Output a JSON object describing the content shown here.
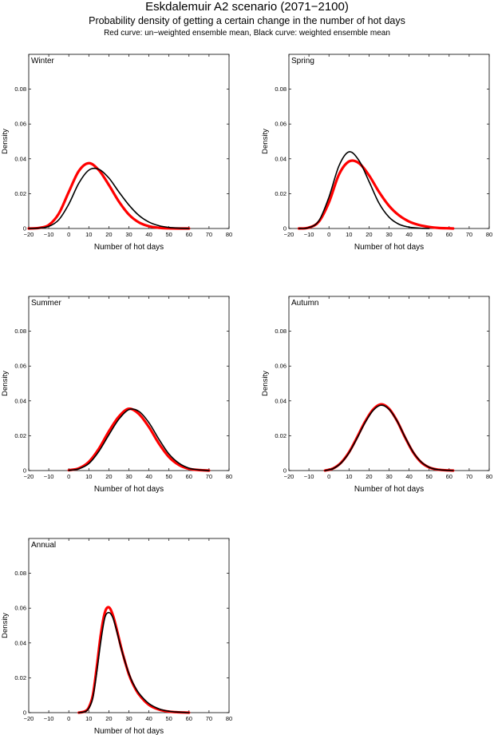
{
  "header": {
    "title": "Eskdalemuir A2 scenario (2071−2100)",
    "subtitle": "Probability density of getting a certain change in the number of hot days",
    "legend_note": "Red curve: un−weighted ensemble mean, Black curve: weighted ensemble mean"
  },
  "colors": {
    "unweighted": "#ff0000",
    "weighted": "#000000"
  },
  "chart_data": [
    {
      "type": "line",
      "panel": "Winter",
      "xlabel": "Number of hot days",
      "ylabel": "Density",
      "xlim": [
        -20,
        80
      ],
      "ylim": [
        0,
        0.1
      ],
      "xticks": [
        -20,
        -10,
        0,
        10,
        20,
        30,
        40,
        50,
        60,
        70,
        80
      ],
      "yticks": [
        0,
        0.02,
        0.04,
        0.06,
        0.08
      ],
      "series": [
        {
          "name": "Red curve: un-weighted ensemble mean",
          "x": [
            -20,
            -15,
            -10,
            -5,
            0,
            5,
            10,
            15,
            20,
            25,
            30,
            35,
            40,
            45,
            50,
            55,
            60
          ],
          "y": [
            0,
            0.0003,
            0.002,
            0.0085,
            0.021,
            0.033,
            0.0375,
            0.0335,
            0.025,
            0.0155,
            0.008,
            0.0035,
            0.0013,
            0.0004,
            0.0001,
            0,
            0
          ]
        },
        {
          "name": "Black curve: weighted ensemble mean",
          "x": [
            -20,
            -15,
            -10,
            -5,
            0,
            5,
            10,
            15,
            20,
            25,
            30,
            35,
            40,
            45,
            50,
            55,
            60
          ],
          "y": [
            0,
            0.0002,
            0.0012,
            0.005,
            0.014,
            0.026,
            0.0335,
            0.034,
            0.029,
            0.021,
            0.0135,
            0.0075,
            0.0037,
            0.0016,
            0.0006,
            0.0002,
            0
          ]
        }
      ]
    },
    {
      "type": "line",
      "panel": "Spring",
      "xlabel": "Number of hot days",
      "ylabel": "Density",
      "xlim": [
        -20,
        80
      ],
      "ylim": [
        0,
        0.1
      ],
      "xticks": [
        -20,
        -10,
        0,
        10,
        20,
        30,
        40,
        50,
        60,
        70,
        80
      ],
      "yticks": [
        0,
        0.02,
        0.04,
        0.06,
        0.08
      ],
      "series": [
        {
          "name": "Red curve: un-weighted ensemble mean",
          "x": [
            -15,
            -10,
            -5,
            0,
            5,
            10,
            15,
            20,
            25,
            30,
            35,
            40,
            45,
            50,
            55,
            60,
            62
          ],
          "y": [
            0,
            0.0005,
            0.004,
            0.015,
            0.031,
            0.0385,
            0.0375,
            0.0305,
            0.021,
            0.013,
            0.0075,
            0.004,
            0.002,
            0.0009,
            0.0003,
            0.0001,
            0
          ]
        },
        {
          "name": "Black curve: weighted ensemble mean",
          "x": [
            -15,
            -10,
            -5,
            0,
            5,
            10,
            15,
            20,
            25,
            30,
            35,
            40,
            45,
            50
          ],
          "y": [
            0,
            0.0005,
            0.0045,
            0.018,
            0.036,
            0.044,
            0.039,
            0.027,
            0.0145,
            0.0065,
            0.0024,
            0.0008,
            0.0002,
            0
          ]
        }
      ]
    },
    {
      "type": "line",
      "panel": "Summer",
      "xlabel": "Number of hot days",
      "ylabel": "Density",
      "xlim": [
        -20,
        80
      ],
      "ylim": [
        0,
        0.1
      ],
      "xticks": [
        -20,
        -10,
        0,
        10,
        20,
        30,
        40,
        50,
        60,
        70,
        80
      ],
      "yticks": [
        0,
        0.02,
        0.04,
        0.06,
        0.08
      ],
      "series": [
        {
          "name": "Red curve: un-weighted ensemble mean",
          "x": [
            0,
            5,
            10,
            15,
            20,
            25,
            30,
            35,
            40,
            45,
            50,
            55,
            60,
            65,
            70
          ],
          "y": [
            0.0002,
            0.0013,
            0.005,
            0.0125,
            0.0225,
            0.031,
            0.0355,
            0.0325,
            0.025,
            0.0155,
            0.0078,
            0.0032,
            0.001,
            0.0003,
            0
          ]
        },
        {
          "name": "Black curve: weighted ensemble mean",
          "x": [
            0,
            5,
            10,
            15,
            20,
            25,
            30,
            35,
            40,
            45,
            50,
            55,
            60,
            65,
            70
          ],
          "y": [
            0.0001,
            0.001,
            0.004,
            0.011,
            0.0205,
            0.0295,
            0.035,
            0.034,
            0.0275,
            0.018,
            0.0095,
            0.0042,
            0.0014,
            0.0004,
            0
          ]
        }
      ]
    },
    {
      "type": "line",
      "panel": "Autumn",
      "xlabel": "Number of hot days",
      "ylabel": "Density",
      "xlim": [
        -20,
        80
      ],
      "ylim": [
        0,
        0.1
      ],
      "xticks": [
        -20,
        -10,
        0,
        10,
        20,
        30,
        40,
        50,
        60,
        70,
        80
      ],
      "yticks": [
        0,
        0.02,
        0.04,
        0.06,
        0.08
      ],
      "series": [
        {
          "name": "Red curve: un-weighted ensemble mean",
          "x": [
            -2,
            2,
            6,
            10,
            14,
            18,
            22,
            26,
            30,
            34,
            38,
            42,
            46,
            50,
            54,
            58,
            62
          ],
          "y": [
            0,
            0.0012,
            0.0045,
            0.0105,
            0.019,
            0.028,
            0.035,
            0.038,
            0.0355,
            0.0285,
            0.019,
            0.0105,
            0.0048,
            0.0018,
            0.0006,
            0.0002,
            0
          ]
        },
        {
          "name": "Black curve: weighted ensemble mean",
          "x": [
            -2,
            2,
            6,
            10,
            14,
            18,
            22,
            26,
            30,
            34,
            38,
            42,
            46,
            50,
            54,
            58,
            62
          ],
          "y": [
            0,
            0.0011,
            0.0043,
            0.0102,
            0.0185,
            0.0275,
            0.0345,
            0.0375,
            0.0352,
            0.0285,
            0.0192,
            0.0107,
            0.005,
            0.0019,
            0.0006,
            0.0002,
            0
          ]
        }
      ]
    },
    {
      "type": "line",
      "panel": "Annual",
      "xlabel": "Number of hot days",
      "ylabel": "Density",
      "xlim": [
        -20,
        80
      ],
      "ylim": [
        0,
        0.1
      ],
      "xticks": [
        -20,
        -10,
        0,
        10,
        20,
        30,
        40,
        50,
        60,
        70,
        80
      ],
      "yticks": [
        0,
        0.02,
        0.04,
        0.06,
        0.08
      ],
      "series": [
        {
          "name": "Red curve: un-weighted ensemble mean",
          "x": [
            5,
            8,
            10,
            12,
            14,
            16,
            18,
            20,
            22,
            24,
            26,
            28,
            30,
            32,
            35,
            40,
            45,
            50,
            55,
            60
          ],
          "y": [
            0,
            0.0007,
            0.003,
            0.01,
            0.0265,
            0.045,
            0.0575,
            0.0605,
            0.056,
            0.0475,
            0.038,
            0.0295,
            0.022,
            0.0165,
            0.0105,
            0.0045,
            0.0018,
            0.0006,
            0.0002,
            0
          ]
        },
        {
          "name": "Black curve: weighted ensemble mean",
          "x": [
            5,
            8,
            10,
            12,
            14,
            16,
            18,
            20,
            22,
            24,
            26,
            28,
            30,
            32,
            35,
            40,
            45,
            50,
            55,
            60
          ],
          "y": [
            0,
            0.0005,
            0.0025,
            0.0085,
            0.0235,
            0.041,
            0.0545,
            0.0575,
            0.0545,
            0.0465,
            0.0375,
            0.0295,
            0.0225,
            0.017,
            0.0112,
            0.0052,
            0.0022,
            0.0008,
            0.0003,
            0
          ]
        }
      ]
    }
  ]
}
